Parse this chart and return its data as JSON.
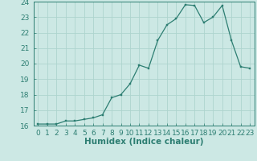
{
  "x": [
    0,
    1,
    2,
    3,
    4,
    5,
    6,
    7,
    8,
    9,
    10,
    11,
    12,
    13,
    14,
    15,
    16,
    17,
    18,
    19,
    20,
    21,
    22,
    23
  ],
  "y": [
    16.1,
    16.1,
    16.1,
    16.3,
    16.3,
    16.4,
    16.5,
    16.7,
    17.8,
    18.0,
    18.7,
    19.9,
    19.7,
    21.5,
    22.5,
    22.9,
    23.8,
    23.75,
    22.65,
    23.0,
    23.75,
    21.5,
    19.8,
    19.7
  ],
  "xlabel": "Humidex (Indice chaleur)",
  "ylim": [
    16,
    24
  ],
  "xlim_min": -0.5,
  "xlim_max": 23.5,
  "yticks": [
    16,
    17,
    18,
    19,
    20,
    21,
    22,
    23,
    24
  ],
  "xticks": [
    0,
    1,
    2,
    3,
    4,
    5,
    6,
    7,
    8,
    9,
    10,
    11,
    12,
    13,
    14,
    15,
    16,
    17,
    18,
    19,
    20,
    21,
    22,
    23
  ],
  "line_color": "#2d7e72",
  "marker_color": "#2d7e72",
  "bg_color": "#cce8e4",
  "grid_color": "#aed4ce",
  "axis_color": "#2d7e72",
  "tick_color": "#2d7e72",
  "label_color": "#2d7e72",
  "xlabel_fontsize": 7.5,
  "tick_fontsize": 6.5
}
